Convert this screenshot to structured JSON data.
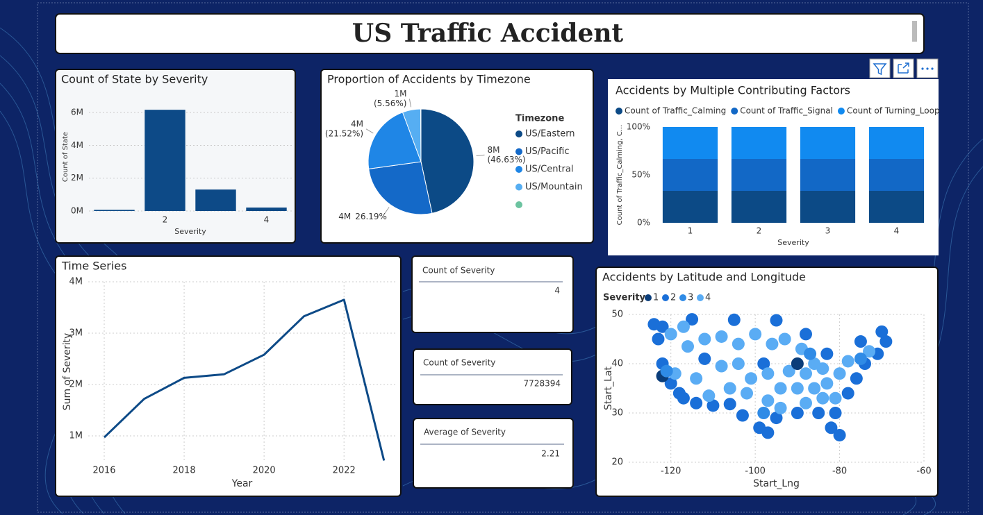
{
  "title": "US Traffic Accident",
  "cards": [
    {
      "label": "Count of Severity",
      "value": 4
    },
    {
      "label": "Count of Severity",
      "value": 7728394
    },
    {
      "label": "Average of Severity",
      "value": 2.21
    }
  ],
  "chart_data": [
    {
      "type": "bar",
      "title": "Count of State by Severity",
      "x_label": "Severity",
      "y_label": "Count of State",
      "categories": [
        null,
        "2",
        null,
        "4"
      ],
      "values": [
        70000,
        6170000,
        1310000,
        210000
      ],
      "color": "#0d4a87",
      "ylim": [
        0,
        6600000
      ],
      "yticks": [
        {
          "value": 0,
          "label": "0M"
        },
        {
          "value": 2000000,
          "label": "2M"
        },
        {
          "value": 4000000,
          "label": "4M"
        },
        {
          "value": 6000000,
          "label": "6M"
        }
      ],
      "grid": true
    },
    {
      "type": "pie",
      "title": "Proportion of Accidents by Timezone",
      "legend_title": "Timezone",
      "categories": [
        "US/Eastern",
        "US/Pacific",
        "US/Central",
        "US/Mountain",
        null
      ],
      "values": [
        46.63,
        26.19,
        21.52,
        5.56,
        0.1
      ],
      "count_labels": [
        "8M",
        "4M",
        "4M",
        "1M",
        null
      ],
      "value_labels": [
        "(46.63%)",
        "26.19%",
        "(21.52%)",
        "(5.56%)",
        null
      ],
      "colors": [
        "#0c4a86",
        "#1469c8",
        "#1f86e6",
        "#56aef2",
        "#6cc3a0"
      ]
    },
    {
      "type": "stacked_bar",
      "title": "Accidents by Multiple Contributing Factors",
      "x_label": "Severity",
      "y_label": "Count of Traffic_Calming, C...",
      "categories": [
        "1",
        "2",
        "3",
        "4"
      ],
      "series": [
        {
          "name": "Count of Traffic_Calming",
          "color": "#0c4a86",
          "values": [
            33.33,
            33.33,
            33.33,
            33.33
          ]
        },
        {
          "name": "Count of Traffic_Signal",
          "color": "#1268c6",
          "values": [
            33.33,
            33.33,
            33.33,
            33.33
          ]
        },
        {
          "name": "Count of Turning_Loop",
          "color": "#118af0",
          "values": [
            33.34,
            33.34,
            33.34,
            33.34
          ]
        }
      ],
      "ylim": [
        0,
        100
      ],
      "yticks": [
        {
          "value": 0,
          "label": "0%"
        },
        {
          "value": 50,
          "label": "50%"
        },
        {
          "value": 100,
          "label": "100%"
        }
      ]
    },
    {
      "type": "line",
      "title": "Time Series",
      "x_label": "Year",
      "y_label": "Sum of Severity",
      "color": "#0d4a87",
      "x": [
        2016,
        2017,
        2018,
        2019,
        2020,
        2021,
        2022,
        2023
      ],
      "values": [
        970000,
        1720000,
        2130000,
        2200000,
        2580000,
        3330000,
        3650000,
        520000
      ],
      "xlim": [
        2015.6,
        2023.3
      ],
      "xticks": [
        2016,
        2018,
        2020,
        2022
      ],
      "ylim": [
        500000,
        4000000
      ],
      "yticks": [
        {
          "value": 1000000,
          "label": "1M"
        },
        {
          "value": 2000000,
          "label": "2M"
        },
        {
          "value": 3000000,
          "label": "3M"
        },
        {
          "value": 4000000,
          "label": "4M"
        }
      ],
      "grid": true
    },
    {
      "type": "scatter",
      "title": "Accidents by Latitude and Longitude",
      "x_label": "Start_Lng",
      "y_label": "Start_Lat",
      "legend_title": "Severity",
      "xlim": [
        -130,
        -60
      ],
      "xticks": [
        -120,
        -100,
        -80,
        -60
      ],
      "ylim": [
        20,
        50
      ],
      "yticks": [
        20,
        30,
        40,
        50
      ],
      "grid": true,
      "series": [
        {
          "name": "1",
          "color": "#0a3d7a",
          "x": [
            -122,
            -90
          ],
          "y": [
            37.5,
            40
          ]
        },
        {
          "name": "2",
          "color": "#1a6fd8",
          "x": [
            -124,
            -123,
            -122,
            -120,
            -118,
            -117,
            -114,
            -110,
            -106,
            -103,
            -99,
            -97,
            -95,
            -90,
            -85,
            -82,
            -80,
            -81,
            -78,
            -76,
            -74,
            -71,
            -69,
            -70,
            -75,
            -83,
            -88,
            -95,
            -105,
            -115,
            -122,
            -112,
            -98
          ],
          "y": [
            48,
            45,
            40,
            36,
            34,
            33,
            32,
            31.5,
            31.8,
            29.5,
            27,
            26,
            29,
            30,
            30,
            27,
            25.5,
            30,
            34,
            37,
            40,
            42,
            44.5,
            46.5,
            44.5,
            42,
            46,
            48.8,
            48.9,
            49,
            47.5,
            41,
            40
          ]
        },
        {
          "name": "3",
          "color": "#2f8be6",
          "x": [
            -121,
            -98,
            -87,
            -75
          ],
          "y": [
            38.5,
            30,
            42,
            41
          ]
        },
        {
          "name": "4",
          "color": "#5aacf4",
          "x": [
            -120,
            -117,
            -116,
            -112,
            -108,
            -104,
            -100,
            -96,
            -93,
            -89,
            -86,
            -84,
            -88,
            -92,
            -97,
            -101,
            -106,
            -111,
            -108,
            -104,
            -94,
            -90,
            -86,
            -83,
            -80,
            -78,
            -73,
            -81,
            -84,
            -88,
            -94,
            -97,
            -102,
            -119,
            -114
          ],
          "y": [
            46,
            47.5,
            43.5,
            45,
            45.5,
            44,
            46,
            44,
            45,
            43,
            40,
            39,
            38,
            38.5,
            38,
            37,
            35,
            33.5,
            39.5,
            40,
            35,
            35,
            35,
            36,
            38,
            40.5,
            42.5,
            33,
            33,
            32,
            31,
            32.5,
            34,
            38,
            37
          ]
        }
      ]
    }
  ]
}
